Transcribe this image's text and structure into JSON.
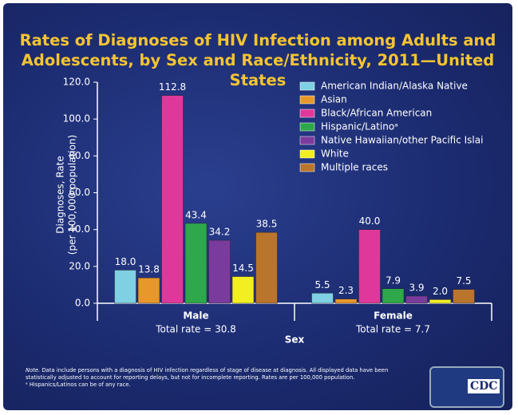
{
  "chart_data": {
    "type": "bar",
    "title": "Rates of Diagnoses of HIV Infection among Adults and Adolescents, by Sex and Race/Ethnicity, 2011—United States",
    "y_label": "Diagnoses, Rate",
    "y_sublabel": "(per 100,000 population)",
    "x_label": "Sex",
    "categories": [
      "Male",
      "Female"
    ],
    "category_notes": [
      "Total rate = 30.8",
      "Total rate = 7.7"
    ],
    "series": [
      {
        "name": "American Indian/Alaska Native",
        "color": "#7fd0e2",
        "values": [
          18.0,
          5.5
        ],
        "value_labels": [
          "18.0",
          "5.5"
        ]
      },
      {
        "name": "Asian",
        "color": "#e8982a",
        "values": [
          13.8,
          2.3
        ],
        "value_labels": [
          "13.8",
          "2.3"
        ]
      },
      {
        "name": "Black/African American",
        "color": "#e0389a",
        "values": [
          112.8,
          40.0
        ],
        "value_labels": [
          "112.8",
          "40.0"
        ]
      },
      {
        "name": "Hispanic/Latinoᵃ",
        "color": "#2ea84a",
        "values": [
          43.4,
          7.9
        ],
        "value_labels": [
          "43.4",
          "7.9"
        ]
      },
      {
        "name": "Native Hawaiian/other Pacific Islai",
        "color": "#7a3c9c",
        "values": [
          34.2,
          3.9
        ],
        "value_labels": [
          "34.2",
          "3.9"
        ]
      },
      {
        "name": "White",
        "color": "#f2ee22",
        "values": [
          14.5,
          2.0
        ],
        "value_labels": [
          "14.5",
          "2.0"
        ]
      },
      {
        "name": "Multiple races",
        "color": "#b9752c",
        "values": [
          38.5,
          7.5
        ],
        "value_labels": [
          "38.5",
          "7.5"
        ]
      }
    ],
    "ylim": [
      0,
      120
    ],
    "yticks": [
      {
        "value": 0,
        "label": "0.0"
      },
      {
        "value": 20,
        "label": "20.0"
      },
      {
        "value": 40,
        "label": "40.0"
      },
      {
        "value": 60,
        "label": "60.0"
      },
      {
        "value": 80,
        "label": "80.0"
      },
      {
        "value": 100,
        "label": "100.0"
      },
      {
        "value": 120,
        "label": "120.0"
      }
    ],
    "legend": "upper right",
    "note_label": "Note.",
    "note": "Data include persons with a diagnosis of HIV infection regardless of stage of disease at diagnosis. All displayed data have been statistically adjusted to account for reporting delays, but not for incomplete reporting. Rates are per 100,000 population.",
    "footnote": "ᵃ Hispanics/Latinos can be of any race.",
    "logo": "CDC"
  }
}
